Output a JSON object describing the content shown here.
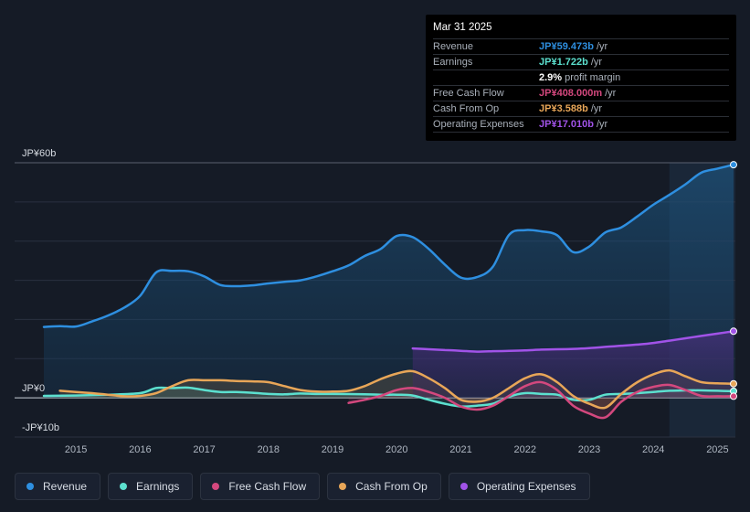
{
  "chart_data": {
    "type": "area",
    "title": "",
    "xlabel": "",
    "ylabel": "",
    "units": "JPY billions",
    "ylim": [
      -10,
      60
    ],
    "y_tick_labels": [
      {
        "value": 60,
        "label": "JP¥60b"
      },
      {
        "value": 0,
        "label": "JP¥0"
      },
      {
        "value": -10,
        "label": "-JP¥10b"
      }
    ],
    "x_ticks": [
      2015,
      2016,
      2017,
      2018,
      2019,
      2020,
      2021,
      2022,
      2023,
      2024,
      2025
    ],
    "x_tick_labels": [
      "2015",
      "2016",
      "2017",
      "2018",
      "2019",
      "2020",
      "2021",
      "2022",
      "2023",
      "2024",
      "2025"
    ],
    "xlim": [
      2014.5,
      2025.25
    ],
    "forecast_start": 2024.25,
    "grid": true,
    "series": [
      {
        "key": "revenue",
        "name": "Revenue",
        "color": "#2e8fe0",
        "points": [
          [
            2014.5,
            18.1
          ],
          [
            2014.75,
            18.3
          ],
          [
            2015.0,
            18.2
          ],
          [
            2015.25,
            19.5
          ],
          [
            2015.5,
            21.0
          ],
          [
            2015.75,
            23.0
          ],
          [
            2016.0,
            26.0
          ],
          [
            2016.25,
            32.0
          ],
          [
            2016.5,
            32.4
          ],
          [
            2016.75,
            32.3
          ],
          [
            2017.0,
            31.0
          ],
          [
            2017.25,
            28.8
          ],
          [
            2017.5,
            28.5
          ],
          [
            2017.75,
            28.7
          ],
          [
            2018.0,
            29.2
          ],
          [
            2018.25,
            29.6
          ],
          [
            2018.5,
            30.0
          ],
          [
            2018.75,
            31.0
          ],
          [
            2019.0,
            32.3
          ],
          [
            2019.25,
            33.8
          ],
          [
            2019.5,
            36.2
          ],
          [
            2019.75,
            38.0
          ],
          [
            2020.0,
            41.3
          ],
          [
            2020.25,
            41.0
          ],
          [
            2020.5,
            38.0
          ],
          [
            2020.75,
            34.0
          ],
          [
            2021.0,
            30.7
          ],
          [
            2021.25,
            30.8
          ],
          [
            2021.5,
            33.5
          ],
          [
            2021.75,
            41.6
          ],
          [
            2022.0,
            42.8
          ],
          [
            2022.25,
            42.5
          ],
          [
            2022.5,
            41.5
          ],
          [
            2022.75,
            37.2
          ],
          [
            2023.0,
            38.6
          ],
          [
            2023.25,
            42.2
          ],
          [
            2023.5,
            43.5
          ],
          [
            2023.75,
            46.3
          ],
          [
            2024.0,
            49.3
          ],
          [
            2024.25,
            51.8
          ],
          [
            2024.5,
            54.5
          ],
          [
            2024.75,
            57.5
          ],
          [
            2025.0,
            58.5
          ],
          [
            2025.25,
            59.5
          ]
        ]
      },
      {
        "key": "earnings",
        "name": "Earnings",
        "color": "#5ce0cf",
        "points": [
          [
            2014.5,
            0.5
          ],
          [
            2015.0,
            0.6
          ],
          [
            2015.5,
            0.8
          ],
          [
            2016.0,
            1.2
          ],
          [
            2016.25,
            2.5
          ],
          [
            2016.5,
            2.5
          ],
          [
            2016.75,
            2.6
          ],
          [
            2017.0,
            2.0
          ],
          [
            2017.25,
            1.5
          ],
          [
            2017.5,
            1.5
          ],
          [
            2017.75,
            1.3
          ],
          [
            2018.0,
            1.0
          ],
          [
            2018.25,
            0.9
          ],
          [
            2018.5,
            1.1
          ],
          [
            2018.75,
            1.0
          ],
          [
            2019.0,
            1.0
          ],
          [
            2019.5,
            0.9
          ],
          [
            2019.75,
            0.8
          ],
          [
            2020.0,
            0.8
          ],
          [
            2020.25,
            0.6
          ],
          [
            2020.5,
            -0.5
          ],
          [
            2020.75,
            -1.5
          ],
          [
            2021.0,
            -2.2
          ],
          [
            2021.25,
            -2.0
          ],
          [
            2021.5,
            -1.5
          ],
          [
            2021.75,
            0.3
          ],
          [
            2022.0,
            1.2
          ],
          [
            2022.25,
            1.0
          ],
          [
            2022.5,
            0.8
          ],
          [
            2022.75,
            -0.5
          ],
          [
            2023.0,
            -0.5
          ],
          [
            2023.25,
            0.8
          ],
          [
            2023.5,
            1.0
          ],
          [
            2023.75,
            1.2
          ],
          [
            2024.0,
            1.5
          ],
          [
            2024.25,
            1.8
          ],
          [
            2024.5,
            1.9
          ],
          [
            2024.75,
            1.9
          ],
          [
            2025.0,
            1.8
          ],
          [
            2025.25,
            1.7
          ]
        ]
      },
      {
        "key": "fcf",
        "name": "Free Cash Flow",
        "color": "#d4487e",
        "points": [
          [
            2019.25,
            -1.3
          ],
          [
            2019.5,
            -0.5
          ],
          [
            2019.75,
            0.5
          ],
          [
            2020.0,
            2.0
          ],
          [
            2020.25,
            2.5
          ],
          [
            2020.5,
            1.5
          ],
          [
            2020.75,
            0.0
          ],
          [
            2021.0,
            -2.2
          ],
          [
            2021.25,
            -3.0
          ],
          [
            2021.5,
            -2.0
          ],
          [
            2021.75,
            0.5
          ],
          [
            2022.0,
            3.0
          ],
          [
            2022.25,
            4.0
          ],
          [
            2022.5,
            2.0
          ],
          [
            2022.75,
            -2.0
          ],
          [
            2023.0,
            -4.0
          ],
          [
            2023.25,
            -5.0
          ],
          [
            2023.5,
            -1.0
          ],
          [
            2023.75,
            1.5
          ],
          [
            2024.0,
            2.8
          ],
          [
            2024.25,
            3.3
          ],
          [
            2024.5,
            2.0
          ],
          [
            2024.75,
            0.5
          ],
          [
            2025.0,
            0.4
          ],
          [
            2025.25,
            0.4
          ]
        ]
      },
      {
        "key": "cfo",
        "name": "Cash From Op",
        "color": "#e8a658",
        "points": [
          [
            2014.75,
            1.8
          ],
          [
            2015.0,
            1.5
          ],
          [
            2015.25,
            1.2
          ],
          [
            2015.5,
            0.8
          ],
          [
            2015.75,
            0.4
          ],
          [
            2016.0,
            0.5
          ],
          [
            2016.25,
            1.2
          ],
          [
            2016.5,
            3.0
          ],
          [
            2016.75,
            4.5
          ],
          [
            2017.0,
            4.5
          ],
          [
            2017.25,
            4.5
          ],
          [
            2017.5,
            4.3
          ],
          [
            2017.75,
            4.2
          ],
          [
            2018.0,
            4.0
          ],
          [
            2018.25,
            3.0
          ],
          [
            2018.5,
            2.0
          ],
          [
            2018.75,
            1.6
          ],
          [
            2019.0,
            1.6
          ],
          [
            2019.25,
            1.8
          ],
          [
            2019.5,
            3.0
          ],
          [
            2019.75,
            4.8
          ],
          [
            2020.0,
            6.2
          ],
          [
            2020.25,
            6.8
          ],
          [
            2020.5,
            5.0
          ],
          [
            2020.75,
            2.5
          ],
          [
            2021.0,
            -0.5
          ],
          [
            2021.25,
            -1.0
          ],
          [
            2021.5,
            0.0
          ],
          [
            2021.75,
            2.5
          ],
          [
            2022.0,
            5.0
          ],
          [
            2022.25,
            6.0
          ],
          [
            2022.5,
            4.0
          ],
          [
            2022.75,
            0.5
          ],
          [
            2023.0,
            -1.5
          ],
          [
            2023.25,
            -2.5
          ],
          [
            2023.5,
            1.0
          ],
          [
            2023.75,
            4.0
          ],
          [
            2024.0,
            6.0
          ],
          [
            2024.25,
            7.0
          ],
          [
            2024.5,
            5.5
          ],
          [
            2024.75,
            4.0
          ],
          [
            2025.0,
            3.7
          ],
          [
            2025.25,
            3.6
          ]
        ]
      },
      {
        "key": "opex",
        "name": "Operating Expenses",
        "color": "#a153e8",
        "points": [
          [
            2020.25,
            12.6
          ],
          [
            2020.5,
            12.4
          ],
          [
            2020.75,
            12.2
          ],
          [
            2021.0,
            12.0
          ],
          [
            2021.25,
            11.8
          ],
          [
            2021.5,
            11.9
          ],
          [
            2021.75,
            12.0
          ],
          [
            2022.0,
            12.1
          ],
          [
            2022.25,
            12.3
          ],
          [
            2022.5,
            12.4
          ],
          [
            2022.75,
            12.5
          ],
          [
            2023.0,
            12.7
          ],
          [
            2023.25,
            13.0
          ],
          [
            2023.5,
            13.3
          ],
          [
            2023.75,
            13.6
          ],
          [
            2024.0,
            14.0
          ],
          [
            2024.25,
            14.6
          ],
          [
            2024.5,
            15.2
          ],
          [
            2024.75,
            15.8
          ],
          [
            2025.0,
            16.4
          ],
          [
            2025.25,
            17.0
          ]
        ]
      }
    ],
    "tooltip": {
      "date": "Mar 31 2025",
      "rows": [
        {
          "label": "Revenue",
          "value": "JP¥59.473b",
          "unit": "/yr",
          "color": "#2e8fe0"
        },
        {
          "label": "Earnings",
          "value": "JP¥1.722b",
          "unit": "/yr",
          "color": "#5ce0cf"
        },
        {
          "label": "",
          "value": "2.9%",
          "unit": "profit margin",
          "color": "#ffffff"
        },
        {
          "label": "Free Cash Flow",
          "value": "JP¥408.000m",
          "unit": "/yr",
          "color": "#d4487e"
        },
        {
          "label": "Cash From Op",
          "value": "JP¥3.588b",
          "unit": "/yr",
          "color": "#e8a658"
        },
        {
          "label": "Operating Expenses",
          "value": "JP¥17.010b",
          "unit": "/yr",
          "color": "#a153e8"
        }
      ]
    },
    "legend": [
      {
        "key": "revenue",
        "label": "Revenue",
        "color": "#2e8fe0"
      },
      {
        "key": "earnings",
        "label": "Earnings",
        "color": "#5ce0cf"
      },
      {
        "key": "fcf",
        "label": "Free Cash Flow",
        "color": "#d4487e"
      },
      {
        "key": "cfo",
        "label": "Cash From Op",
        "color": "#e8a658"
      },
      {
        "key": "opex",
        "label": "Operating Expenses",
        "color": "#a153e8"
      }
    ]
  }
}
